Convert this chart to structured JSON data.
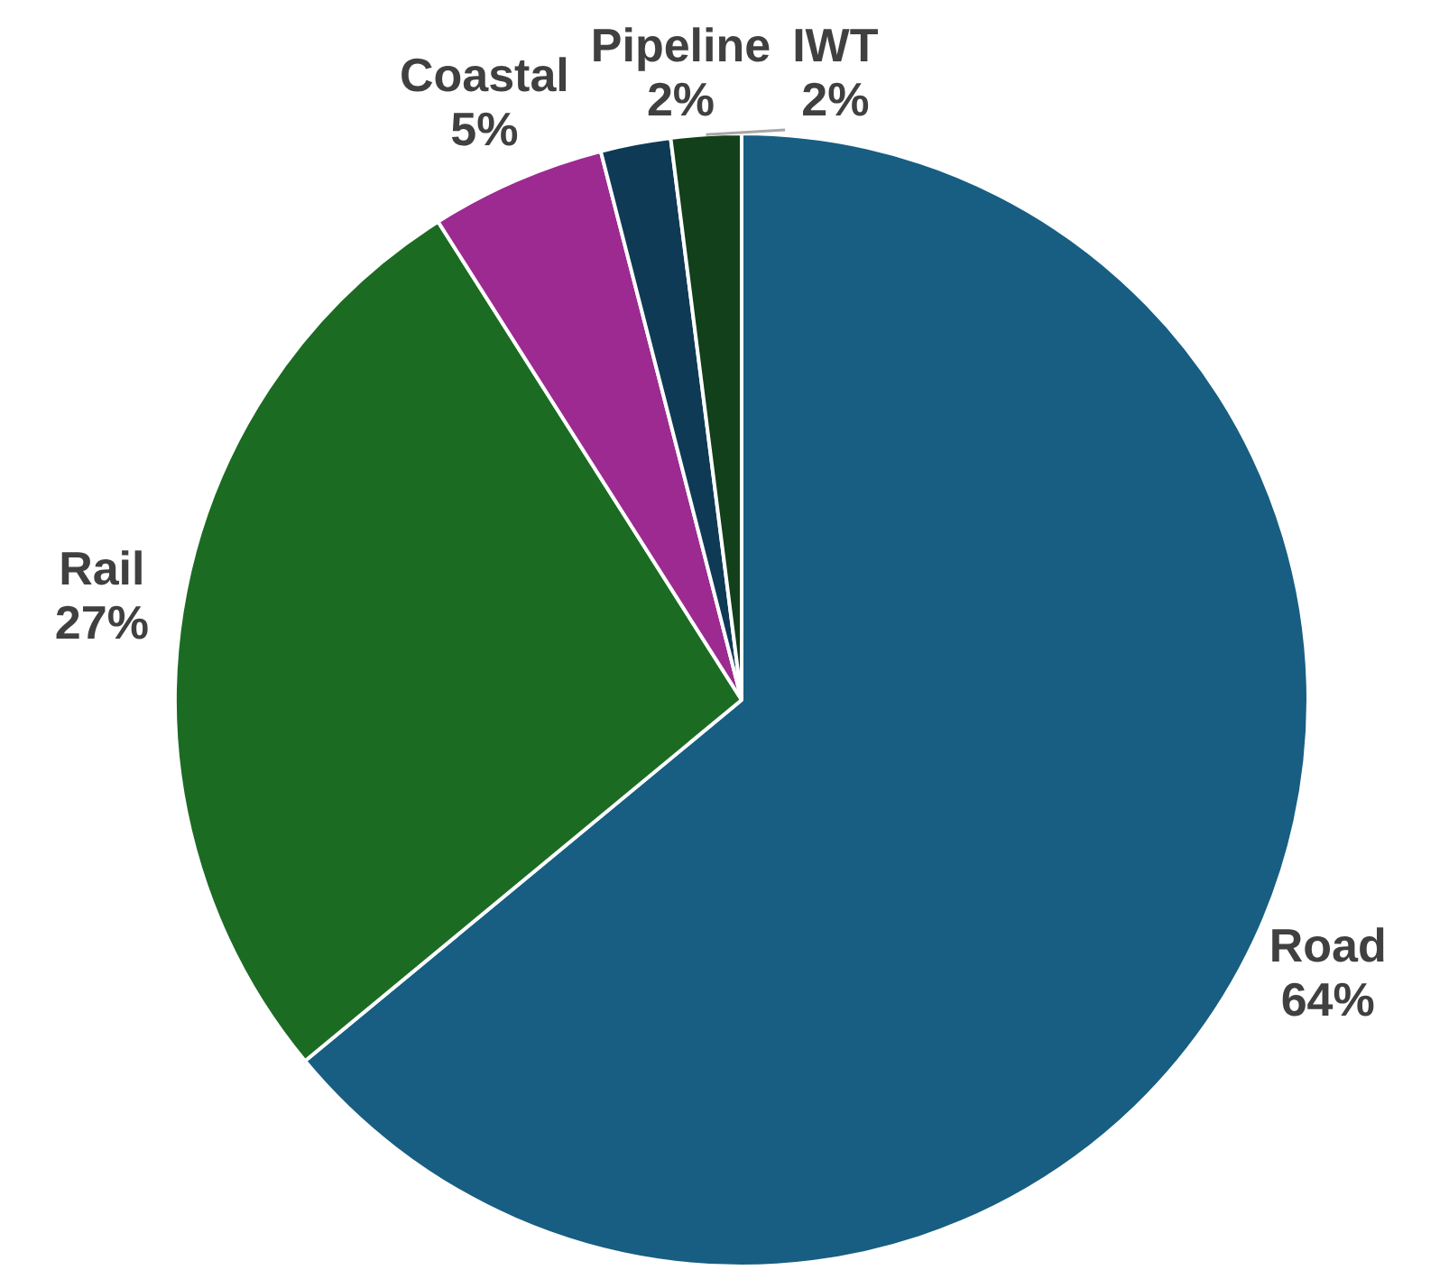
{
  "chart_data": {
    "type": "pie",
    "categories": [
      "Road",
      "Rail",
      "Coastal",
      "Pipeline",
      "IWT"
    ],
    "values": [
      64,
      27,
      5,
      2,
      2
    ],
    "colors": [
      "#175e82",
      "#1c6b23",
      "#9c2a91",
      "#0f3a55",
      "#12401a"
    ],
    "value_labels": [
      "64%",
      "27%",
      "5%",
      "2%",
      "2%"
    ],
    "legend": false
  }
}
